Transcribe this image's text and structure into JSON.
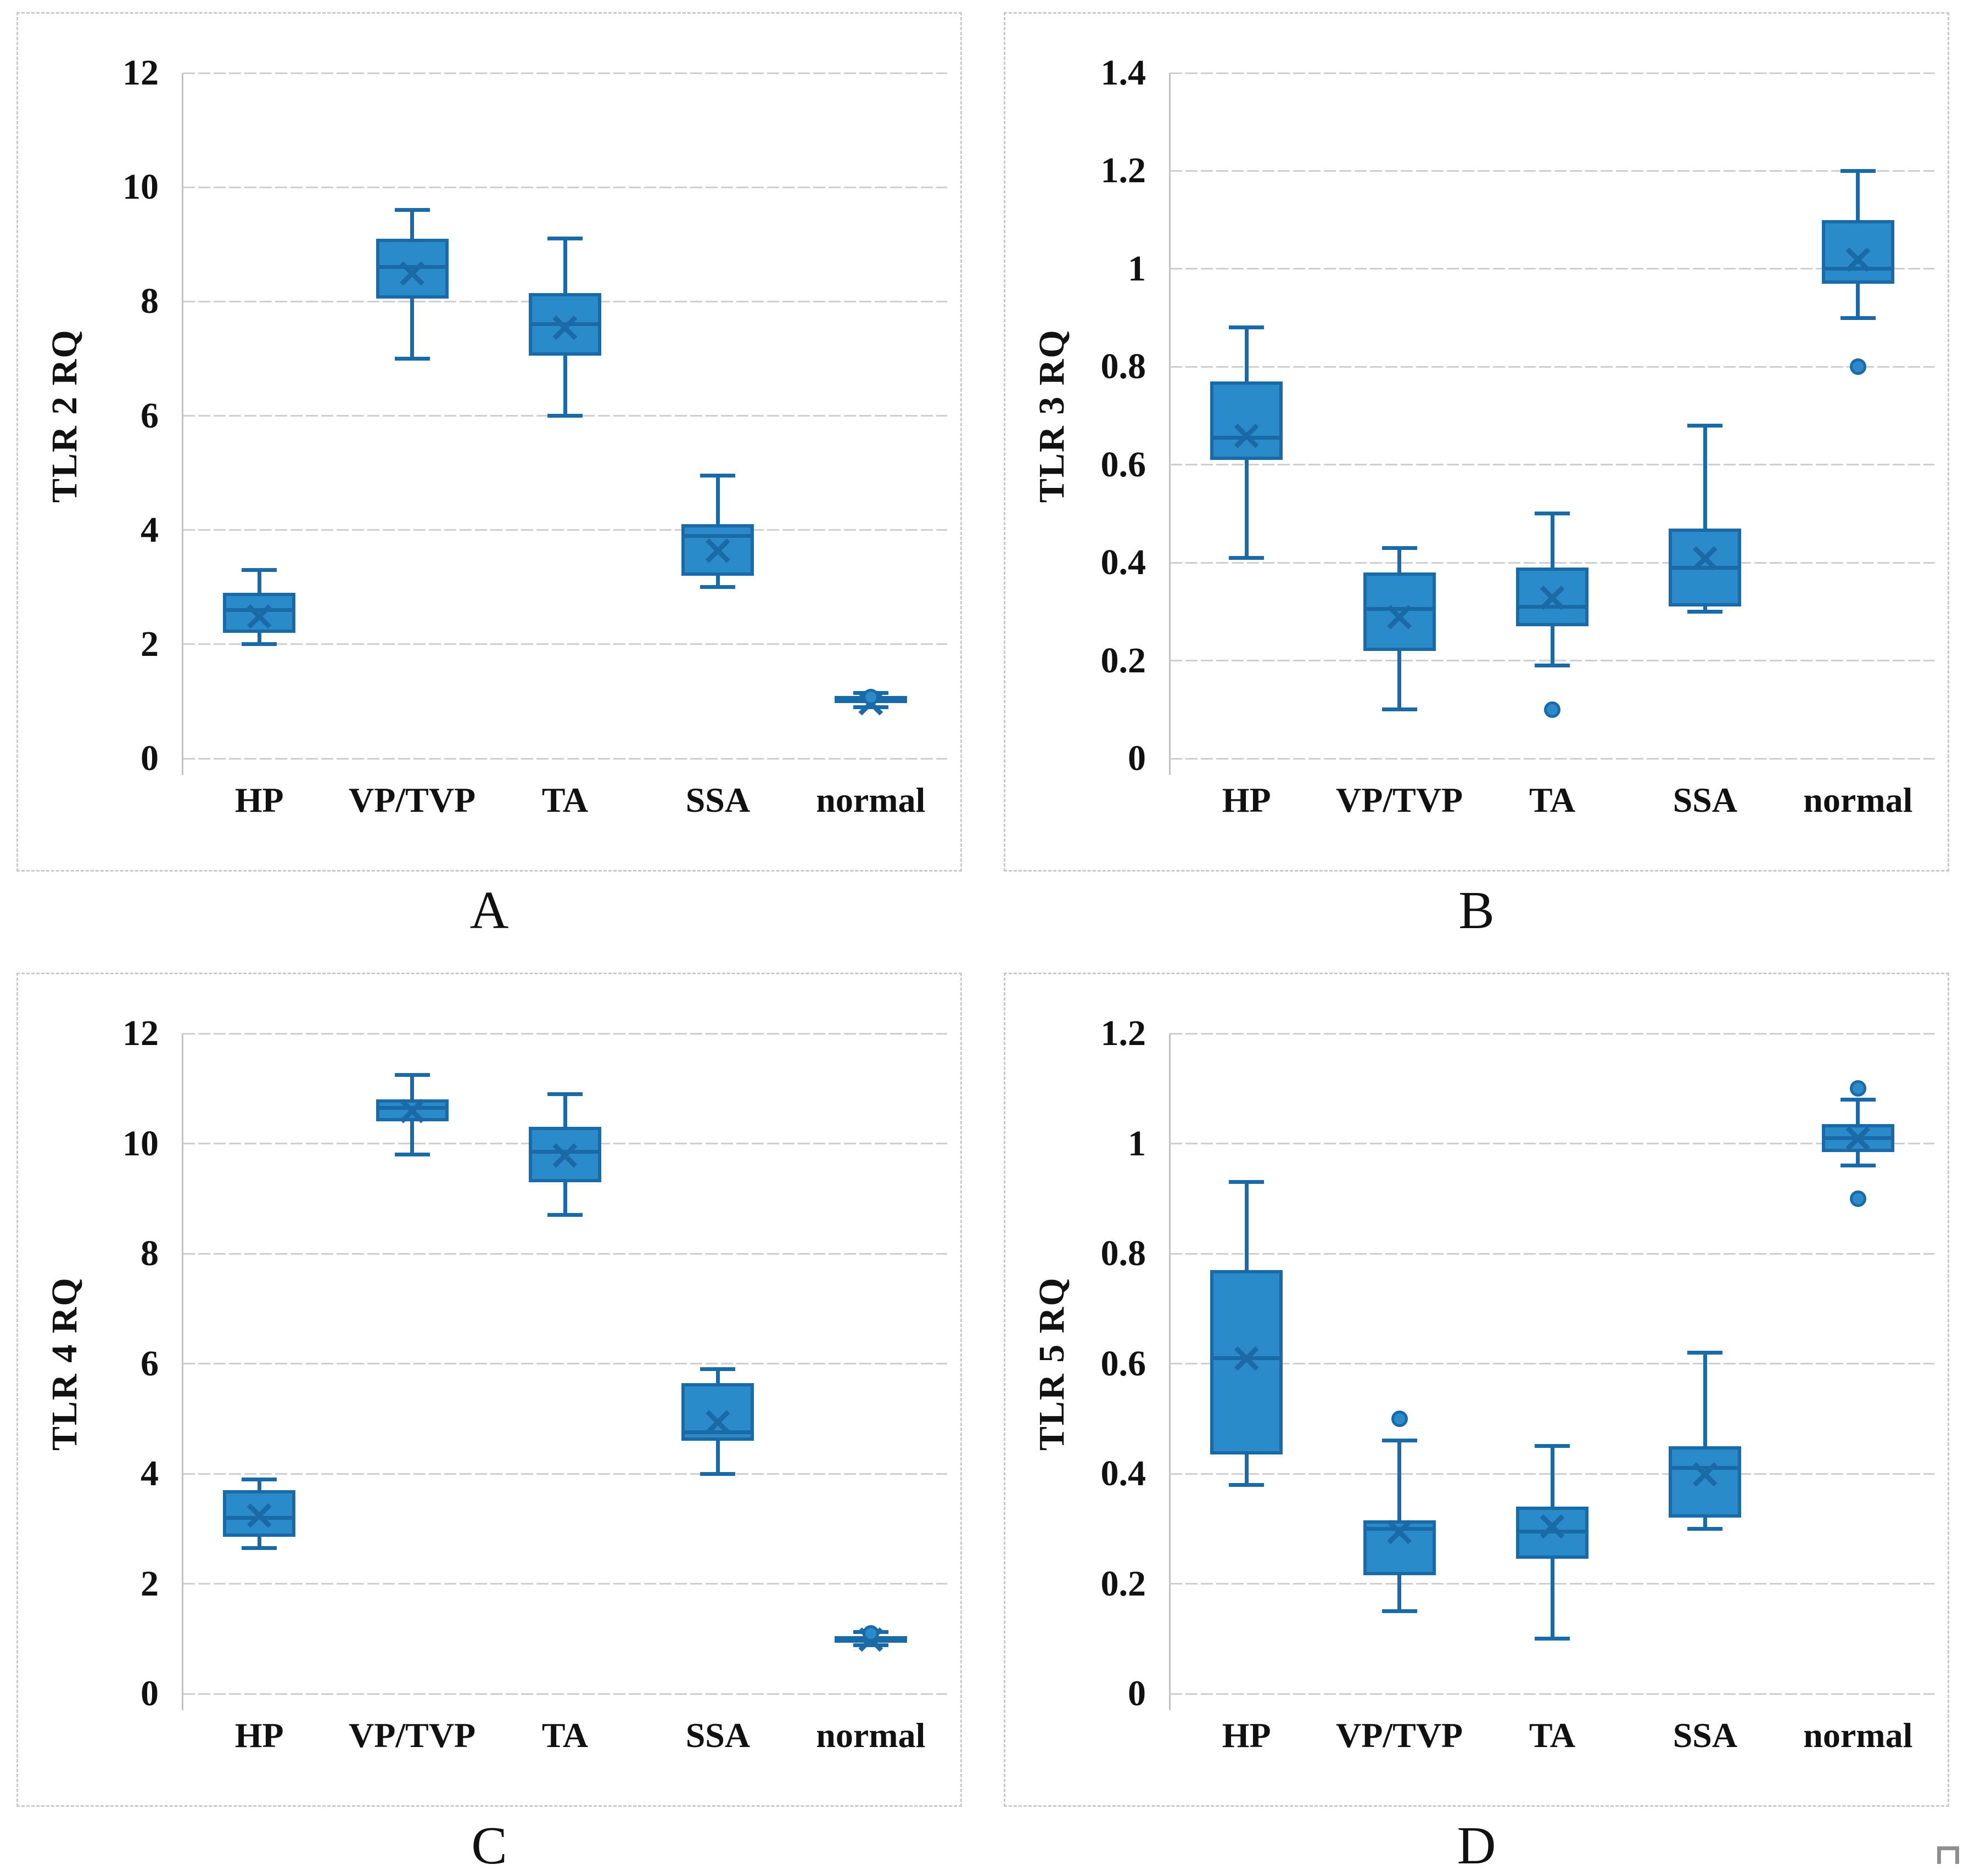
{
  "style": {
    "box_fill": "#2b8aca",
    "box_border": "#1b6aa8",
    "gridline": "#cfcfcf",
    "axis_line": "#c2c2c2",
    "panel_border": "#c9c9c9",
    "text_color": "#111111"
  },
  "chart_data": [
    {
      "type": "box",
      "panel_label": "A",
      "ylabel": "TLR 2 RQ",
      "categories": [
        "HP",
        "VP/TVP",
        "TA",
        "SSA",
        "normal"
      ],
      "ylim": [
        0,
        12
      ],
      "ytick_step": 2,
      "grid": "horizontal",
      "series": [
        {
          "name": "HP",
          "whisker_low": 2.0,
          "q1": 2.2,
          "median": 2.6,
          "mean": 2.5,
          "q3": 2.9,
          "whisker_high": 3.3,
          "outliers": []
        },
        {
          "name": "VP/TVP",
          "whisker_low": 7.0,
          "q1": 8.05,
          "median": 8.6,
          "mean": 8.5,
          "q3": 9.1,
          "whisker_high": 9.6,
          "outliers": []
        },
        {
          "name": "TA",
          "whisker_low": 6.0,
          "q1": 7.05,
          "median": 7.6,
          "mean": 7.55,
          "q3": 8.15,
          "whisker_high": 9.1,
          "outliers": []
        },
        {
          "name": "SSA",
          "whisker_low": 3.0,
          "q1": 3.2,
          "median": 3.9,
          "mean": 3.65,
          "q3": 4.1,
          "whisker_high": 4.95,
          "outliers": []
        },
        {
          "name": "normal",
          "whisker_low": 0.9,
          "q1": 0.97,
          "median": 1.02,
          "mean": 0.98,
          "q3": 1.1,
          "whisker_high": 1.15,
          "outliers": [
            1.08
          ]
        }
      ]
    },
    {
      "type": "box",
      "panel_label": "B",
      "ylabel": "TLR 3 RQ",
      "categories": [
        "HP",
        "VP/TVP",
        "TA",
        "SSA",
        "normal"
      ],
      "ylim": [
        0,
        1.4
      ],
      "ytick_step": 0.2,
      "grid": "horizontal",
      "series": [
        {
          "name": "HP",
          "whisker_low": 0.41,
          "q1": 0.61,
          "median": 0.655,
          "mean": 0.66,
          "q3": 0.77,
          "whisker_high": 0.88,
          "outliers": []
        },
        {
          "name": "VP/TVP",
          "whisker_low": 0.1,
          "q1": 0.22,
          "median": 0.305,
          "mean": 0.29,
          "q3": 0.38,
          "whisker_high": 0.43,
          "outliers": []
        },
        {
          "name": "TA",
          "whisker_low": 0.19,
          "q1": 0.27,
          "median": 0.31,
          "mean": 0.33,
          "q3": 0.39,
          "whisker_high": 0.5,
          "outliers": [
            0.1
          ]
        },
        {
          "name": "SSA",
          "whisker_low": 0.3,
          "q1": 0.31,
          "median": 0.39,
          "mean": 0.41,
          "q3": 0.47,
          "whisker_high": 0.68,
          "outliers": []
        },
        {
          "name": "normal",
          "whisker_low": 0.9,
          "q1": 0.97,
          "median": 1.0,
          "mean": 1.02,
          "q3": 1.1,
          "whisker_high": 1.2,
          "outliers": [
            0.8
          ]
        }
      ]
    },
    {
      "type": "box",
      "panel_label": "C",
      "ylabel": "TLR 4 RQ",
      "categories": [
        "HP",
        "VP/TVP",
        "TA",
        "SSA",
        "normal"
      ],
      "ylim": [
        0,
        12
      ],
      "ytick_step": 2,
      "grid": "horizontal",
      "series": [
        {
          "name": "HP",
          "whisker_low": 2.65,
          "q1": 2.85,
          "median": 3.2,
          "mean": 3.25,
          "q3": 3.7,
          "whisker_high": 3.9,
          "outliers": []
        },
        {
          "name": "VP/TVP",
          "whisker_low": 9.8,
          "q1": 10.4,
          "median": 10.65,
          "mean": 10.6,
          "q3": 10.8,
          "whisker_high": 11.25,
          "outliers": []
        },
        {
          "name": "TA",
          "whisker_low": 8.7,
          "q1": 9.3,
          "median": 9.85,
          "mean": 9.8,
          "q3": 10.3,
          "whisker_high": 10.9,
          "outliers": []
        },
        {
          "name": "SSA",
          "whisker_low": 4.0,
          "q1": 4.6,
          "median": 4.75,
          "mean": 4.95,
          "q3": 5.65,
          "whisker_high": 5.9,
          "outliers": []
        },
        {
          "name": "normal",
          "whisker_low": 0.88,
          "q1": 0.95,
          "median": 1.0,
          "mean": 1.0,
          "q3": 1.05,
          "whisker_high": 1.12,
          "outliers": [
            1.1
          ]
        }
      ]
    },
    {
      "type": "box",
      "panel_label": "D",
      "ylabel": "TLR 5 RQ",
      "categories": [
        "HP",
        "VP/TVP",
        "TA",
        "SSA",
        "normal"
      ],
      "ylim": [
        0,
        1.2
      ],
      "ytick_step": 0.2,
      "grid": "horizontal",
      "series": [
        {
          "name": "HP",
          "whisker_low": 0.38,
          "q1": 0.435,
          "median": 0.61,
          "mean": 0.61,
          "q3": 0.77,
          "whisker_high": 0.93,
          "outliers": []
        },
        {
          "name": "VP/TVP",
          "whisker_low": 0.15,
          "q1": 0.215,
          "median": 0.3,
          "mean": 0.295,
          "q3": 0.315,
          "whisker_high": 0.46,
          "outliers": [
            0.5
          ]
        },
        {
          "name": "TA",
          "whisker_low": 0.1,
          "q1": 0.245,
          "median": 0.295,
          "mean": 0.305,
          "q3": 0.34,
          "whisker_high": 0.45,
          "outliers": []
        },
        {
          "name": "SSA",
          "whisker_low": 0.3,
          "q1": 0.32,
          "median": 0.41,
          "mean": 0.4,
          "q3": 0.45,
          "whisker_high": 0.62,
          "outliers": []
        },
        {
          "name": "normal",
          "whisker_low": 0.96,
          "q1": 0.985,
          "median": 1.01,
          "mean": 1.01,
          "q3": 1.035,
          "whisker_high": 1.08,
          "outliers": [
            1.1,
            0.9
          ]
        }
      ]
    }
  ]
}
